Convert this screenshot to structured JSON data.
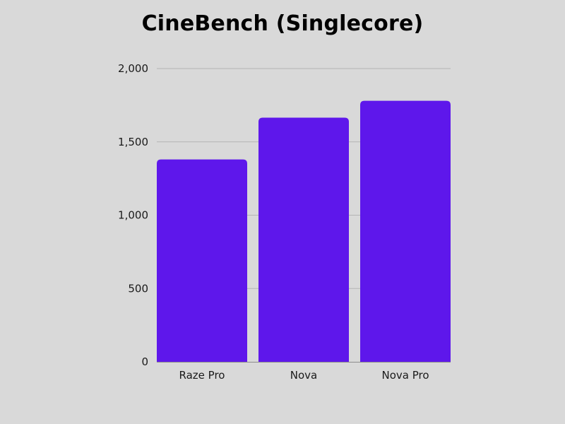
{
  "chart_data": {
    "type": "bar",
    "title": "CineBench (Singlecore)",
    "categories": [
      "Raze Pro",
      "Nova",
      "Nova Pro"
    ],
    "values": [
      1380,
      1665,
      1780
    ],
    "ylim": [
      0,
      2000
    ],
    "yticks": [
      0,
      500,
      1000,
      1500,
      2000
    ],
    "ytick_labels": [
      "0",
      "500",
      "1,000",
      "1,500",
      "2,000"
    ],
    "grid": true,
    "bar_color": "#5e17eb",
    "grid_color": "#b3b3b3",
    "background_color": "#d9d9d9"
  }
}
